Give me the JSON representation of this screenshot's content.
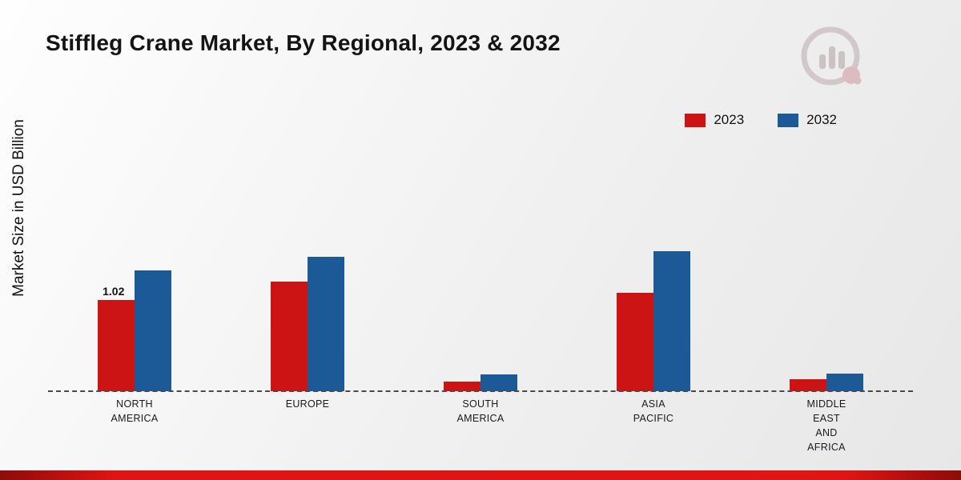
{
  "title": "Stiffleg Crane Market, By Regional, 2023 & 2032",
  "y_axis_label": "Market Size in USD Billion",
  "colors": {
    "red_2023": "#cc1414",
    "blue_2032": "#1b5a96",
    "bottom_strip_dark": "#8f0b0b",
    "bottom_strip_bright": "#e01414"
  },
  "chart_data": {
    "type": "bar",
    "title": "Stiffleg Crane Market, By Regional, 2023 & 2032",
    "xlabel": "",
    "ylabel": "Market Size in USD Billion",
    "categories": [
      "NORTH AMERICA",
      "EUROPE",
      "SOUTH AMERICA",
      "ASIA PACIFIC",
      "MIDDLE EAST AND AFRICA"
    ],
    "category_label_lines": [
      [
        "NORTH",
        "AMERICA"
      ],
      [
        "EUROPE"
      ],
      [
        "SOUTH",
        "AMERICA"
      ],
      [
        "ASIA",
        "PACIFIC"
      ],
      [
        "MIDDLE",
        "EAST",
        "AND",
        "AFRICA"
      ]
    ],
    "series": [
      {
        "name": "2023",
        "color": "#cc1414",
        "values": [
          1.02,
          1.22,
          0.11,
          1.1,
          0.13
        ]
      },
      {
        "name": "2032",
        "color": "#1b5a96",
        "values": [
          1.35,
          1.5,
          0.19,
          1.56,
          0.2
        ]
      }
    ],
    "value_labels": [
      {
        "category_index": 0,
        "series_index": 0,
        "text": "1.02"
      }
    ],
    "ylim": [
      0,
      1.75
    ],
    "grid": false,
    "legend_position": "top-right",
    "baseline_style": "dashed"
  }
}
